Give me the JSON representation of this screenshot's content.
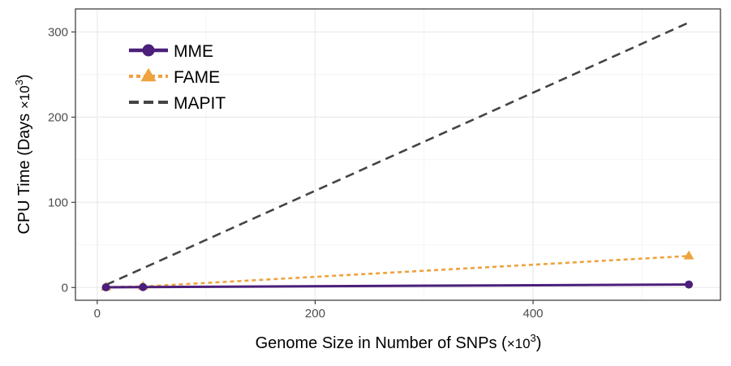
{
  "chart_data": {
    "type": "line",
    "title": "",
    "xlabel_main": "Genome Size in Number of SNPs (",
    "xlabel_unit": "×10",
    "xlabel_exp": "3",
    "xlabel_close": ")",
    "ylabel_main": "CPU Time (Days ",
    "ylabel_unit": "×10",
    "ylabel_exp": "3",
    "ylabel_close": ")",
    "xlim": [
      -20,
      572
    ],
    "ylim": [
      -15,
      327
    ],
    "x_ticks": [
      0,
      200,
      400
    ],
    "x_minor_ticks": [
      100,
      300,
      500
    ],
    "y_ticks": [
      0,
      100,
      200,
      300
    ],
    "y_minor_ticks": [
      50,
      150,
      250
    ],
    "grid": true,
    "legend_position": "top-left",
    "series": [
      {
        "name": "MME",
        "color": "#4b1f7a",
        "line_style": "solid",
        "marker": "circle",
        "x": [
          8,
          42,
          543
        ],
        "y": [
          0.2,
          0.5,
          3.5
        ]
      },
      {
        "name": "FAME",
        "color": "#eda33f",
        "line_style": "dotted",
        "marker": "triangle",
        "x": [
          8,
          42,
          543
        ],
        "y": [
          0.5,
          1.2,
          37
        ]
      },
      {
        "name": "MAPIT",
        "color": "#444444",
        "line_style": "dashed",
        "marker": "none",
        "x": [
          8,
          543
        ],
        "y": [
          3,
          311
        ]
      }
    ]
  }
}
